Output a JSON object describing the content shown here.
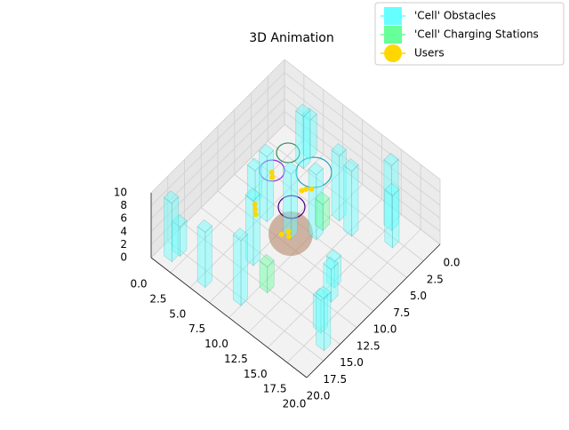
{
  "chart_data": {
    "type": "bar3d",
    "title": "3D Animation",
    "xlim": [
      0,
      20
    ],
    "ylim": [
      0,
      20
    ],
    "zlim": [
      0,
      10
    ],
    "xticks": [
      {
        "value": 0,
        "label": "0.0"
      },
      {
        "value": 2.5,
        "label": "2.5"
      },
      {
        "value": 5,
        "label": "5.0"
      },
      {
        "value": 7.5,
        "label": "7.5"
      },
      {
        "value": 10,
        "label": "10.0"
      },
      {
        "value": 12.5,
        "label": "12.5"
      },
      {
        "value": 15,
        "label": "15.0"
      },
      {
        "value": 17.5,
        "label": "17.5"
      },
      {
        "value": 20,
        "label": "20.0"
      }
    ],
    "yticks": [
      {
        "value": 0,
        "label": "0.0"
      },
      {
        "value": 2.5,
        "label": "2.5"
      },
      {
        "value": 5,
        "label": "5.0"
      },
      {
        "value": 7.5,
        "label": "7.5"
      },
      {
        "value": 10,
        "label": "10.0"
      },
      {
        "value": 12.5,
        "label": "12.5"
      },
      {
        "value": 15,
        "label": "15.0"
      },
      {
        "value": 17.5,
        "label": "17.5"
      },
      {
        "value": 20,
        "label": "20.0"
      }
    ],
    "zticks": [
      0,
      2,
      4,
      6,
      8,
      10
    ],
    "grid": true,
    "series": [
      {
        "name": "'Cell' Obstacles",
        "color": "#66ffff",
        "x": [
          3.4,
          3.6,
          10.0,
          14.5,
          2.6,
          15.8,
          12.0,
          4.8,
          9.7,
          7.8,
          7.0,
          1.0,
          0.8,
          14.5,
          15.3,
          5.1,
          9.0,
          16.8,
          18.3
        ],
        "y": [
          0.3,
          1.5,
          3.6,
          1.0,
          7.6,
          2.4,
          4.1,
          8.4,
          6.7,
          8.3,
          13.0,
          17.0,
          18.0,
          9.6,
          11.0,
          18.0,
          17.2,
          14.3,
          15.6
        ],
        "height": [
          6,
          8,
          10,
          10,
          5,
          8,
          10,
          10,
          10,
          10,
          10,
          4.5,
          9,
          4,
          5,
          8.5,
          10,
          5,
          8
        ]
      },
      {
        "name": "'Cell' Charging Stations",
        "color": "#66ff99",
        "x": [
          9.5,
          10.0
        ],
        "y": [
          5.5,
          14.4
        ],
        "height": [
          4,
          4
        ]
      },
      {
        "name": "Users",
        "color": "#ffd700",
        "x": [
          5.0,
          5.4,
          4.6,
          3.5,
          3.9,
          7.2,
          7.6,
          7.0,
          9.0,
          9.4,
          8.7
        ],
        "y": [
          10.2,
          10.6,
          9.8,
          6.0,
          6.4,
          5.2,
          4.8,
          5.6,
          9.9,
          10.3,
          10.6
        ],
        "height": [
          2,
          2,
          2,
          2,
          2,
          2,
          2,
          2,
          2,
          2,
          2
        ]
      }
    ],
    "legend": "upper right"
  }
}
